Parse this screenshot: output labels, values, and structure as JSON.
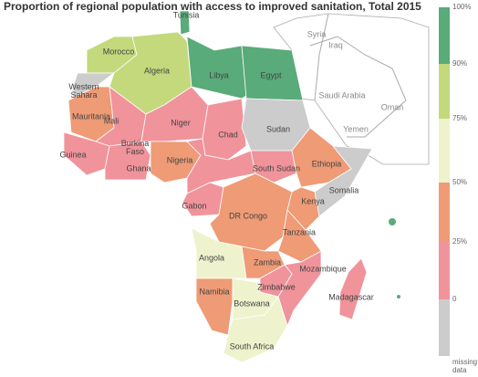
{
  "title": "Proportion of regional population with access to improved sanitation, Total 2015",
  "legend": {
    "colors": [
      "#5aab7a",
      "#c3d97c",
      "#eef3cd",
      "#ee9b76",
      "#f0939b",
      "#cccccc"
    ],
    "labels": [
      "100%",
      "90%",
      "75%",
      "50%",
      "25%",
      "0",
      "missing data"
    ]
  },
  "labels": [
    "Syria",
    "Iraq",
    "Saudi Arabia",
    "Oman",
    "Yemen",
    "Tunisia",
    "Morocco",
    "Algeria",
    "Libya",
    "Egypt",
    "Western Sahara",
    "Mauritania",
    "Mali",
    "Niger",
    "Chad",
    "Sudan",
    "Burkina Faso",
    "Guinea",
    "Ghana",
    "Nigeria",
    "South Sudan",
    "Ethiopia",
    "Somalia",
    "Kenya",
    "Gabon",
    "DR Congo",
    "Tanzania",
    "Angola",
    "Zambia",
    "Mozambique",
    "Namibia",
    "Zimbabwe",
    "Madagascar",
    "Botswana",
    "South Africa"
  ]
}
